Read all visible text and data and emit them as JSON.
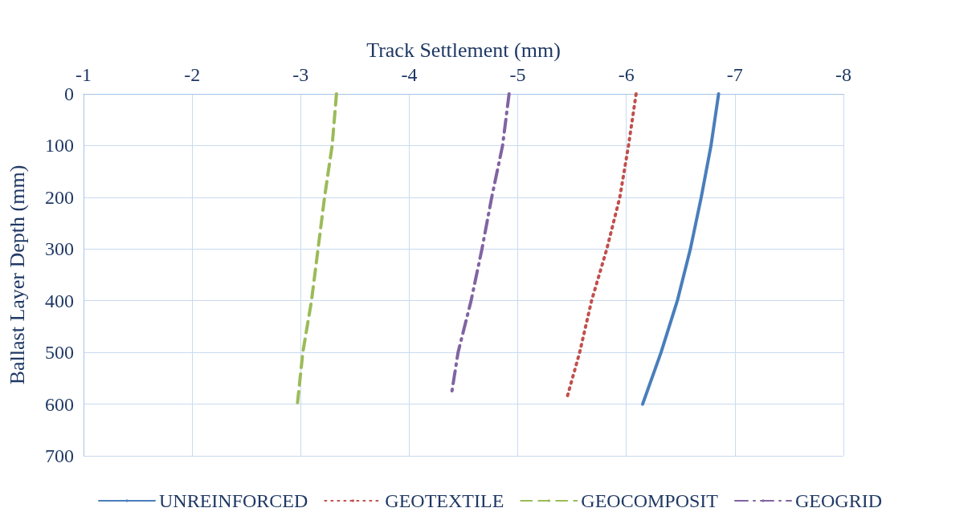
{
  "chart_data": {
    "type": "line",
    "xlabel": "Track Settlement (mm)",
    "ylabel": "Ballast Layer Depth (mm)",
    "xlim": [
      -1,
      -8
    ],
    "xticks": [
      -1,
      -2,
      -3,
      -4,
      -5,
      -6,
      -7,
      -8
    ],
    "ylim": [
      700,
      0
    ],
    "yticks": [
      0,
      100,
      200,
      300,
      400,
      500,
      600,
      700
    ],
    "grid": true,
    "legend": "bottom",
    "marker": "none",
    "series": [
      {
        "name": "UNREINFORCED",
        "color": "#4a7ebb",
        "line_style": "solid",
        "x": [
          -6.85,
          -6.78,
          -6.69,
          -6.59,
          -6.47,
          -6.32,
          -6.15
        ],
        "values": [
          0,
          100,
          200,
          300,
          400,
          500,
          600
        ]
      },
      {
        "name": "GEOTEXTILE",
        "color": "#c0504d",
        "line_style": "dotted",
        "x": [
          -6.09,
          -6.02,
          -5.94,
          -5.82,
          -5.68,
          -5.57,
          -5.45
        ],
        "values": [
          0,
          100,
          200,
          300,
          400,
          500,
          590
        ]
      },
      {
        "name": "GEOCOMPOSIT",
        "color": "#9bbb59",
        "line_style": "dashed",
        "x": [
          -3.33,
          -3.29,
          -3.22,
          -3.16,
          -3.1,
          -3.02,
          -2.97
        ],
        "values": [
          0,
          100,
          200,
          300,
          400,
          500,
          600
        ]
      },
      {
        "name": "GEOGRID",
        "color": "#8064a2",
        "line_style": "dashdot",
        "x": [
          -4.92,
          -4.86,
          -4.76,
          -4.67,
          -4.57,
          -4.45,
          -4.39
        ],
        "values": [
          0,
          100,
          200,
          300,
          400,
          500,
          580
        ]
      }
    ]
  }
}
